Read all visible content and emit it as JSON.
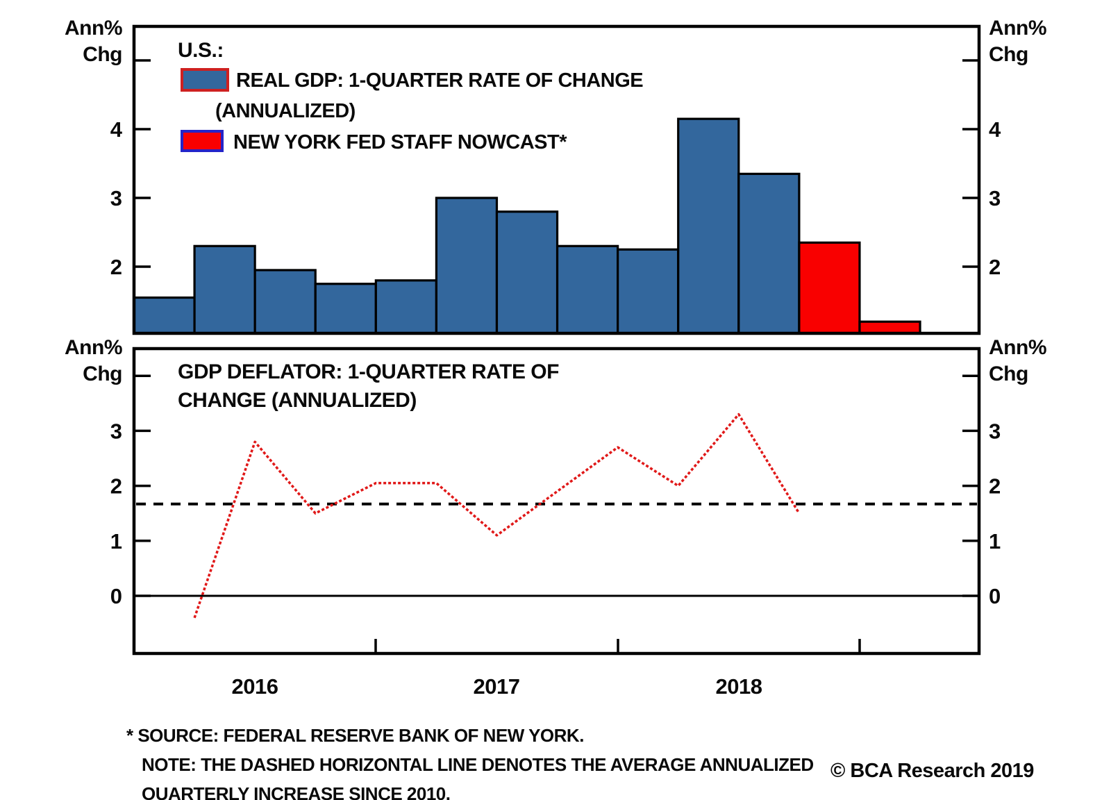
{
  "colors": {
    "gdp_bar_fill": "#33679D",
    "nowcast_bar_fill": "#F90000",
    "bar_outline": "#000000",
    "legend_gdp_swatch_border": "#CE2020",
    "legend_nowcast_swatch_border": "#2424C8",
    "deflator_line": "#E01818",
    "average_dashed_line": "#000000",
    "axis": "#000000",
    "text": "#0a0a0a"
  },
  "top_panel": {
    "left_axis_unit": [
      "Ann%",
      "Chg"
    ],
    "right_axis_unit": [
      "Ann%",
      "Chg"
    ],
    "legend_title": "U.S.:",
    "legend": {
      "gdp_label_line1": "REAL GDP: 1-QUARTER RATE OF CHANGE",
      "gdp_label_line2": "(ANNUALIZED)",
      "nowcast_label": "NEW YORK FED STAFF NOWCAST*"
    },
    "y_ticks": [
      {
        "value": 5,
        "label": ""
      },
      {
        "value": 4,
        "label": "4"
      },
      {
        "value": 3,
        "label": "3"
      },
      {
        "value": 2,
        "label": "2"
      }
    ]
  },
  "bottom_panel": {
    "title_line1": "GDP DEFLATOR: 1-QUARTER RATE OF",
    "title_line2": "CHANGE (ANNUALIZED)",
    "left_axis_unit": [
      "Ann%",
      "Chg"
    ],
    "right_axis_unit": [
      "Ann%",
      "Chg"
    ],
    "y_ticks": [
      {
        "value": 4,
        "label": ""
      },
      {
        "value": 3,
        "label": "3"
      },
      {
        "value": 2,
        "label": "2"
      },
      {
        "value": 1,
        "label": "1"
      },
      {
        "value": 0,
        "label": "0"
      }
    ]
  },
  "x_axis": {
    "year_labels": [
      "2016",
      "2017",
      "2018"
    ]
  },
  "footnotes": [
    "* SOURCE: FEDERAL RESERVE BANK OF NEW YORK.",
    "NOTE: THE DASHED HORIZONTAL LINE DENOTES THE AVERAGE ANNUALIZED",
    "QUARTERLY INCREASE SINCE 2010."
  ],
  "copyright": "© BCA Research 2019",
  "chart_data": [
    {
      "type": "bar",
      "title": "U.S.: REAL GDP: 1-QUARTER RATE OF CHANGE (ANNUALIZED) / NEW YORK FED STAFF NOWCAST*",
      "categories": [
        "2016 Q1",
        "2016 Q2",
        "2016 Q3",
        "2016 Q4",
        "2017 Q1",
        "2017 Q2",
        "2017 Q3",
        "2017 Q4",
        "2018 Q1",
        "2018 Q2",
        "2018 Q3",
        "2018 Q4",
        "2019 Q1"
      ],
      "series": [
        {
          "name": "REAL GDP: 1-QUARTER RATE OF CHANGE (ANNUALIZED)",
          "values": [
            1.55,
            2.3,
            1.95,
            1.75,
            1.8,
            3.0,
            2.8,
            2.3,
            2.25,
            4.15,
            3.35,
            null,
            null
          ]
        },
        {
          "name": "NEW YORK FED STAFF NOWCAST*",
          "values": [
            null,
            null,
            null,
            null,
            null,
            null,
            null,
            null,
            null,
            null,
            null,
            2.35,
            1.2
          ]
        }
      ],
      "ylabel": "Ann% Chg",
      "ylim": [
        1.03,
        5.5
      ],
      "grid": false,
      "legend_position": "top-left"
    },
    {
      "type": "line",
      "title": "GDP DEFLATOR: 1-QUARTER RATE OF CHANGE (ANNUALIZED)",
      "x": [
        "2016 Q1",
        "2016 Q2",
        "2016 Q3",
        "2016 Q4",
        "2017 Q1",
        "2017 Q2",
        "2017 Q3",
        "2017 Q4",
        "2018 Q1",
        "2018 Q2",
        "2018 Q3"
      ],
      "values": [
        -0.4,
        2.8,
        1.5,
        2.05,
        2.05,
        1.1,
        1.9,
        2.7,
        2.0,
        3.3,
        1.5
      ],
      "average_line_value": 1.67,
      "zero_line": 0,
      "ylabel": "Ann% Chg",
      "ylim": [
        -1.05,
        4.5
      ],
      "grid": false
    }
  ]
}
